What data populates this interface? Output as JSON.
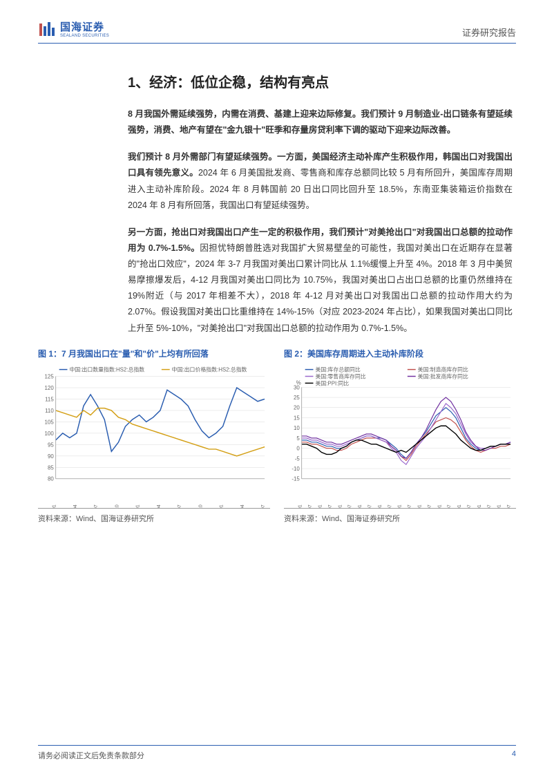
{
  "header": {
    "logo_cn": "国海证券",
    "logo_en": "SEALAND SECURITIES",
    "right": "证券研究报告"
  },
  "section_title": "1、经济：低位企稳，结构有亮点",
  "para1_bold": "8 月我国外需延续强势，内需在消费、基建上迎来边际修复。我们预计 9 月制造业-出口链条有望延续强势，消费、地产有望在\"金九银十\"旺季和存量房贷利率下调的驱动下迎来边际改善。",
  "para2_bold": "我们预计 8 月外需部门有望延续强势。一方面，美国经济主动补库产生积极作用，韩国出口对我国出口具有领先意义。",
  "para2_rest": "2024 年 6 月美国批发商、零售商和库存总额同比较 5 月有所回升，美国库存周期进入主动补库阶段。2024 年 8 月韩国前 20 日出口同比回升至 18.5%，东南亚集装箱运价指数在 2024 年 8 月有所回落，我国出口有望延续强势。",
  "para3_bold": "另一方面，抢出口对我国出口产生一定的积极作用，我们预计\"对美抢出口\"对我国出口总额的拉动作用为 0.7%-1.5%。",
  "para3_rest": "因担忧特朗普胜选对我国扩大贸易壁垒的可能性，我国对美出口在近期存在显著的\"抢出口效应\"，2024 年 3-7 月我国对美出口累计同比从 1.1%缓慢上升至 4%。2018 年 3 月中美贸易摩擦爆发后，4-12 月我国对美出口同比为 10.75%，我国对美出口占出口总额的比重仍然维持在 19%附近（与 2017 年相差不大），2018 年 4-12 月对美出口对我国出口总额的拉动作用大约为 2.07%。假设我国对美出口比重维持在 14%-15%（对应 2023-2024 年占比），如果我国对美出口同比上升至 5%-10%，\"对美抢出口\"对我国出口总额的拉动作用为 0.7%-1.5%。",
  "fig1": {
    "title": "图 1：7 月我国出口在\"量\"和\"价\"上均有所回落",
    "source": "资料来源：Wind、国海证券研究所",
    "type": "line",
    "legend": [
      "中国:出口数量指数:HS2:总指数",
      "中国:出口价格指数:HS2:总指数"
    ],
    "legend_colors": [
      "#2a5db0",
      "#d4a017"
    ],
    "x_labels": [
      "2022-01",
      "2022-04",
      "2022-07",
      "2022-10",
      "2023-01",
      "2023-04",
      "2023-07",
      "2023-10",
      "2024-01",
      "2024-04",
      "2024-07"
    ],
    "y_min": 80,
    "y_max": 125,
    "y_step": 5,
    "series": [
      {
        "color": "#2a5db0",
        "width": 1.5,
        "values": [
          97,
          100,
          98,
          100,
          112,
          117,
          112,
          106,
          92,
          96,
          103,
          106,
          108,
          105,
          107,
          110,
          119,
          117,
          115,
          112,
          106,
          101,
          98,
          100,
          103,
          112,
          120,
          118,
          116,
          114,
          115
        ]
      },
      {
        "color": "#d4a017",
        "width": 1.5,
        "values": [
          110,
          109,
          108,
          107,
          110,
          108,
          111,
          111,
          110,
          107,
          106,
          104,
          103,
          102,
          101,
          100,
          99,
          98,
          97,
          96,
          95,
          94,
          93,
          93,
          92,
          91,
          90,
          91,
          92,
          93,
          94
        ]
      }
    ],
    "grid_color": "#d9d9d9",
    "plot_bg": "#ffffff"
  },
  "fig2": {
    "title": "图 2：美国库存周期进入主动补库阶段",
    "source": "资料来源：Wind、国海证券研究所",
    "type": "line",
    "legend": [
      "美国:库存总额同比",
      "美国:制造商库存同比",
      "美国:零售商库存同比",
      "美国:批发商库存同比",
      "美国:PPI:同比"
    ],
    "legend_colors": [
      "#2a5db0",
      "#c0504d",
      "#9966cc",
      "#7030a0",
      "#000000"
    ],
    "x_labels": [
      "2014-01",
      "2014-07",
      "2015-01",
      "2015-07",
      "2016-01",
      "2016-07",
      "2017-01",
      "2017-07",
      "2018-01",
      "2018-07",
      "2019-01",
      "2019-07",
      "2020-01",
      "2020-07",
      "2021-01",
      "2021-07",
      "2022-01",
      "2022-07",
      "2023-01",
      "2023-07",
      "2024-01",
      "2024-07"
    ],
    "y_min": -15,
    "y_max": 30,
    "y_step": 5,
    "y_unit": "%",
    "series": [
      {
        "color": "#2a5db0",
        "width": 1.2,
        "values": [
          4,
          4,
          3,
          3,
          2,
          1,
          1,
          0,
          0,
          1,
          3,
          4,
          5,
          6,
          6,
          5,
          5,
          4,
          2,
          0,
          -3,
          -5,
          -2,
          2,
          5,
          8,
          12,
          16,
          18,
          20,
          18,
          15,
          10,
          5,
          2,
          0,
          -1,
          0,
          1,
          1,
          2,
          2,
          3
        ]
      },
      {
        "color": "#c0504d",
        "width": 1.2,
        "values": [
          3,
          3,
          2,
          2,
          1,
          0,
          0,
          -1,
          -1,
          0,
          2,
          3,
          4,
          5,
          5,
          5,
          4,
          3,
          1,
          -1,
          -4,
          -6,
          -3,
          1,
          4,
          7,
          10,
          13,
          14,
          15,
          14,
          12,
          8,
          4,
          1,
          -1,
          -2,
          -1,
          0,
          0,
          1,
          1,
          2
        ]
      },
      {
        "color": "#9966cc",
        "width": 1.2,
        "values": [
          5,
          5,
          4,
          4,
          3,
          2,
          2,
          1,
          1,
          2,
          3,
          4,
          5,
          6,
          6,
          5,
          4,
          3,
          0,
          -2,
          -6,
          -8,
          -4,
          0,
          3,
          6,
          10,
          14,
          18,
          22,
          20,
          17,
          12,
          7,
          3,
          1,
          0,
          0,
          1,
          1,
          2,
          2,
          3
        ]
      },
      {
        "color": "#7030a0",
        "width": 1.2,
        "values": [
          6,
          6,
          5,
          5,
          4,
          3,
          3,
          2,
          2,
          3,
          4,
          5,
          6,
          7,
          7,
          6,
          5,
          4,
          1,
          -1,
          -4,
          -5,
          -2,
          2,
          5,
          9,
          14,
          19,
          23,
          25,
          23,
          19,
          14,
          8,
          4,
          1,
          -1,
          -1,
          0,
          1,
          2,
          2,
          3
        ]
      },
      {
        "color": "#000000",
        "width": 1.4,
        "values": [
          2,
          2,
          1,
          0,
          -2,
          -3,
          -3,
          -2,
          0,
          1,
          3,
          4,
          4,
          3,
          2,
          2,
          1,
          0,
          -1,
          -2,
          -1,
          -2,
          0,
          2,
          4,
          6,
          8,
          10,
          11,
          11,
          9,
          7,
          4,
          2,
          0,
          -1,
          -1,
          0,
          1,
          1,
          2,
          2,
          2
        ]
      }
    ],
    "grid_color": "#d9d9d9",
    "plot_bg": "#ffffff"
  },
  "footer": {
    "left": "请务必阅读正文后免责条款部分",
    "page": "4"
  }
}
